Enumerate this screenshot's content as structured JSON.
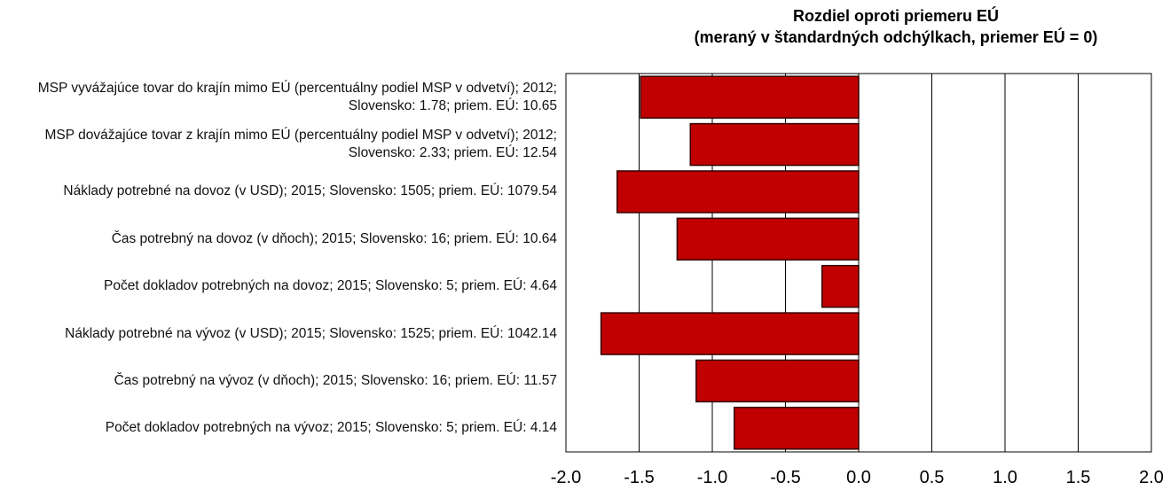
{
  "chart_data": {
    "type": "bar",
    "orientation": "horizontal",
    "title": "Rozdiel oproti priemeru EÚ",
    "subtitle": "(meraný v štandardných odchýlkach, priemer EÚ = 0)",
    "categories": [
      "MSP vyvážajúce tovar do krajín mimo EÚ (percentuálny podiel MSP v odvetví); 2012; Slovensko: 1.78; priem. EÚ: 10.65",
      "MSP dovážajúce tovar z krajín mimo EÚ (percentuálny podiel MSP v odvetví); 2012; Slovensko: 2.33; priem. EÚ: 12.54",
      "Náklady potrebné na dovoz (v USD); 2015; Slovensko: 1505; priem. EÚ: 1079.54",
      "Čas potrebný na dovoz (v dňoch); 2015; Slovensko: 16; priem. EÚ: 10.64",
      "Počet dokladov potrebných na dovoz; 2015; Slovensko: 5; priem. EÚ: 4.64",
      "Náklady potrebné na vývoz (v USD); 2015; Slovensko: 1525; priem. EÚ: 1042.14",
      "Čas potrebný na vývoz (v dňoch); 2015; Slovensko: 16; priem. EÚ: 11.57",
      "Počet dokladov potrebných na vývoz; 2015; Slovensko: 5; priem. EÚ: 4.14"
    ],
    "values": [
      -1.49,
      -1.15,
      -1.65,
      -1.24,
      -0.25,
      -1.76,
      -1.11,
      -0.85
    ],
    "color": "#c00000",
    "xlim": [
      -2,
      2
    ],
    "xticks": [
      {
        "value": -2,
        "label": "-2.0"
      },
      -1.5,
      {
        "value": -1,
        "label": "-1.0"
      },
      -0.5,
      {
        "value": 0,
        "label": "0.0"
      },
      0.5,
      {
        "value": 1,
        "label": "1.0"
      },
      1.5,
      {
        "value": 2,
        "label": "2.0"
      }
    ],
    "grid": true
  }
}
